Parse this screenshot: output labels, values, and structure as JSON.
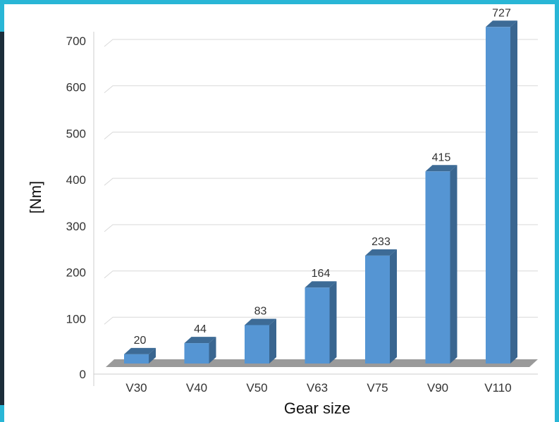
{
  "chart_data": {
    "type": "bar",
    "categories": [
      "V30",
      "V40",
      "V50",
      "V63",
      "V75",
      "V90",
      "V110"
    ],
    "values": [
      20,
      44,
      83,
      164,
      233,
      415,
      727
    ],
    "xlabel": "Gear size",
    "ylabel": "[Nm]",
    "ylim": [
      0,
      700
    ],
    "yticks": [
      0,
      100,
      200,
      300,
      400,
      500,
      600,
      700
    ],
    "grid": true,
    "data_labels": true
  },
  "colors": {
    "bar_front": "#5595d3",
    "bar_side": "#3a6690",
    "bar_top": "#3d6b96",
    "floor": "#9a9a9a",
    "grid": "#d9d9d9",
    "frame": "#29b6d6"
  }
}
